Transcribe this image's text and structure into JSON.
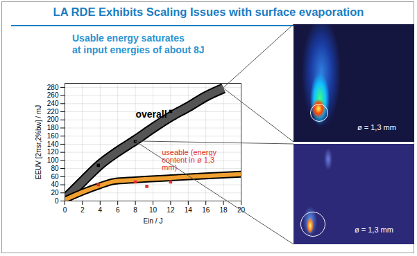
{
  "chart_data": {
    "type": "line",
    "title": "LA RDE Exhibits Scaling Issues with surface evaporation",
    "subtitle": [
      "Usable energy saturates",
      "at input energies of about 8J"
    ],
    "x_label": "Ein / J",
    "y_label": "EEUV [2πsr,2%bw] / mJ",
    "xlim": [
      0,
      20
    ],
    "xticks": [
      0,
      2,
      4,
      6,
      8,
      10,
      12,
      14,
      16,
      18,
      20
    ],
    "ylim": [
      0,
      290
    ],
    "yticks": [
      0,
      20,
      40,
      60,
      80,
      100,
      120,
      140,
      160,
      180,
      200,
      220,
      240,
      260,
      280
    ],
    "grid": true,
    "series": [
      {
        "name": "overall",
        "color": "#555555",
        "line_style": "band",
        "x": [
          0,
          2,
          4,
          6,
          8,
          10,
          12,
          14,
          16,
          18
        ],
        "values": [
          5,
          48,
          90,
          122,
          150,
          180,
          208,
          232,
          258,
          278
        ],
        "points": {
          "x": [
            3.8,
            8,
            12
          ],
          "y": [
            88,
            147,
            221
          ],
          "color": "#000000",
          "marker": "square"
        },
        "label_at": [
          9.8,
          213
        ]
      },
      {
        "name": "useable (energy content in ø 1,3 mm)",
        "color": "#f0a030",
        "line_style": "band",
        "x": [
          0,
          2,
          4,
          5.5,
          8,
          12,
          16,
          20
        ],
        "values": [
          3,
          22,
          38,
          48,
          52,
          57,
          62,
          66
        ],
        "points": {
          "x": [
            3.8,
            8,
            9.3,
            12
          ],
          "y": [
            40,
            47,
            36,
            47
          ],
          "color": "#e03030",
          "marker": "square"
        },
        "label_at": [
          11,
          100
        ]
      }
    ],
    "images": [
      {
        "label": "ø = 1,3 mm"
      },
      {
        "label": "ø = 1,3 mm"
      }
    ]
  }
}
